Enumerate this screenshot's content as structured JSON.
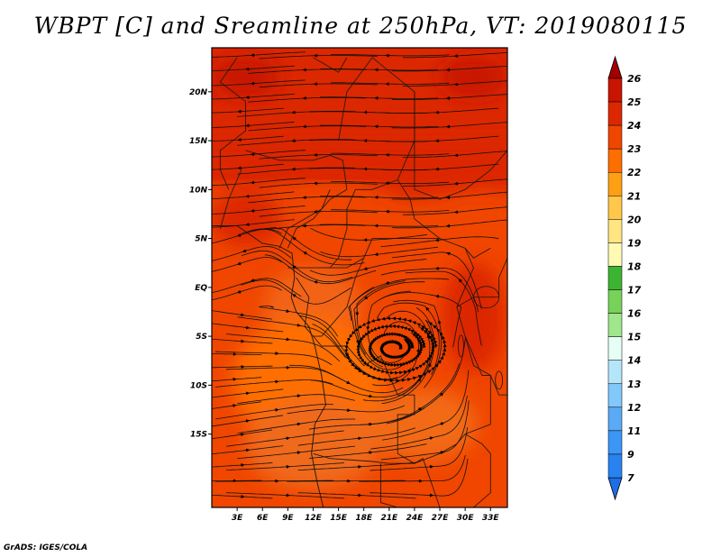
{
  "title": "WBPT [C] and Sreamline at 250hPa, VT: 2019080115",
  "footer": "GrADS: IGES/COLA",
  "map": {
    "lat_range": [
      -22.5,
      24.5
    ],
    "lon_range": [
      0,
      35
    ],
    "lat_labels": [
      {
        "value": 20,
        "text": "20N"
      },
      {
        "value": 15,
        "text": "15N"
      },
      {
        "value": 10,
        "text": "10N"
      },
      {
        "value": 5,
        "text": "5N"
      },
      {
        "value": 0,
        "text": "EQ"
      },
      {
        "value": -5,
        "text": "5S"
      },
      {
        "value": -10,
        "text": "10S"
      },
      {
        "value": -15,
        "text": "15S"
      }
    ],
    "lon_labels": [
      {
        "value": 3,
        "text": "3E"
      },
      {
        "value": 6,
        "text": "6E"
      },
      {
        "value": 9,
        "text": "9E"
      },
      {
        "value": 12,
        "text": "12E"
      },
      {
        "value": 15,
        "text": "15E"
      },
      {
        "value": 18,
        "text": "18E"
      },
      {
        "value": 21,
        "text": "21E"
      },
      {
        "value": 24,
        "text": "24E"
      },
      {
        "value": 27,
        "text": "27E"
      },
      {
        "value": 30,
        "text": "30E"
      },
      {
        "value": 33,
        "text": "33E"
      }
    ],
    "circulation_center": {
      "lon": 21.5,
      "lat": -6.2
    },
    "fill_regions": [
      {
        "name": "north-band",
        "lat_min": 11,
        "lat_max": 24.5,
        "level": "24-25"
      },
      {
        "name": "central-band",
        "lat_min": -22.5,
        "lat_max": 11,
        "level": "23-24"
      },
      {
        "name": "south-lobe",
        "lon": 11.5,
        "lat": -9.5,
        "level": "22-23"
      },
      {
        "name": "north-west-patch",
        "lon": 4,
        "lat": 21.5,
        "level": "25-26"
      },
      {
        "name": "north-east-patch",
        "lon": 31,
        "lat": 21.5,
        "level": "25-26"
      }
    ]
  },
  "colorbar": {
    "levels": [
      "7",
      "9",
      "11",
      "12",
      "13",
      "14",
      "15",
      "16",
      "17",
      "18",
      "19",
      "20",
      "21",
      "22",
      "23",
      "24",
      "25",
      "26"
    ],
    "colors": [
      "#1e6ee6",
      "#2882f0",
      "#3c96f5",
      "#5aaaf5",
      "#82c8fa",
      "#b4e6fa",
      "#e6fff5",
      "#a0e68c",
      "#78d25a",
      "#3cb432",
      "#fffab4",
      "#ffe682",
      "#ffc84b",
      "#ffa014",
      "#ff6e00",
      "#f04600",
      "#dc2800",
      "#c81400",
      "#a00000"
    ]
  }
}
